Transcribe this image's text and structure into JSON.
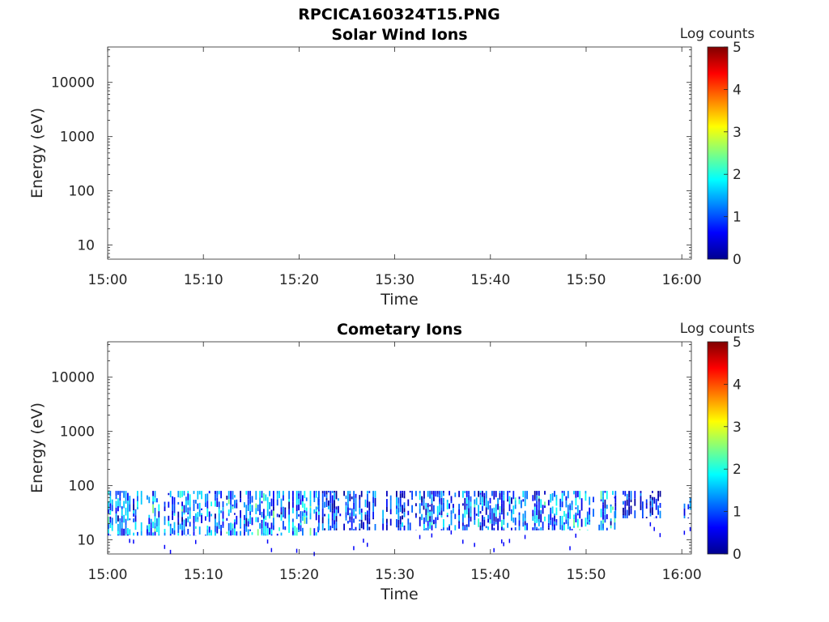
{
  "figure": {
    "title": "RPCICA160324T15.PNG"
  },
  "colors": {
    "colormap": [
      "#00008f",
      "#0000ff",
      "#0080ff",
      "#00ffff",
      "#80ff80",
      "#ffff00",
      "#ff8000",
      "#ff0000",
      "#800000"
    ],
    "axis": "#262626",
    "background": "#ffffff"
  },
  "chart_data": [
    {
      "type": "heatmap",
      "title": "Solar Wind Ions",
      "xlabel": "Time",
      "ylabel": "Energy (eV)",
      "x_ticks": [
        "15:00",
        "15:10",
        "15:20",
        "15:30",
        "15:40",
        "15:50",
        "16:00"
      ],
      "y_ticks": [
        10,
        100,
        1000,
        10000
      ],
      "y_scale": "log",
      "xlim": [
        "15:00",
        "16:01"
      ],
      "ylim": [
        5.5,
        45000
      ],
      "colorbar": {
        "label": "Log counts",
        "ticks": [
          0,
          1,
          2,
          3,
          4,
          5
        ],
        "range": [
          0,
          5
        ]
      },
      "has_data": false,
      "data": []
    },
    {
      "type": "heatmap",
      "title": "Cometary Ions",
      "xlabel": "Time",
      "ylabel": "Energy (eV)",
      "x_ticks": [
        "15:00",
        "15:10",
        "15:20",
        "15:30",
        "15:40",
        "15:50",
        "16:00"
      ],
      "y_ticks": [
        10,
        100,
        1000,
        10000
      ],
      "y_scale": "log",
      "xlim": [
        "15:00",
        "16:01"
      ],
      "ylim": [
        5.5,
        45000
      ],
      "colorbar": {
        "label": "Log counts",
        "ticks": [
          0,
          1,
          2,
          3,
          4,
          5
        ],
        "range": [
          0,
          5
        ]
      },
      "has_data": true,
      "data": [
        {
          "time_range": [
            "15:00",
            "15:22"
          ],
          "energy_range_eV": [
            12,
            80
          ],
          "log_counts_typical": 1.2,
          "log_counts_peak": 2.5
        },
        {
          "time_range": [
            "15:22",
            "15:33"
          ],
          "energy_range_eV": [
            15,
            80
          ],
          "log_counts_typical": 0.8,
          "log_counts_peak": 1.8
        },
        {
          "time_range": [
            "15:33",
            "15:45"
          ],
          "energy_range_eV": [
            15,
            80
          ],
          "log_counts_typical": 1.0,
          "log_counts_peak": 2.2
        },
        {
          "time_range": [
            "15:45",
            "15:53"
          ],
          "energy_range_eV": [
            15,
            80
          ],
          "log_counts_typical": 1.2,
          "log_counts_peak": 2.4
        },
        {
          "time_range": [
            "15:53",
            "15:58"
          ],
          "energy_range_eV": [
            25,
            80
          ],
          "log_counts_typical": 0.6,
          "log_counts_peak": 1.3
        },
        {
          "time_range": [
            "16:00",
            "16:01"
          ],
          "energy_range_eV": [
            25,
            60
          ],
          "log_counts_typical": 1.0,
          "log_counts_peak": 1.6
        }
      ]
    }
  ]
}
